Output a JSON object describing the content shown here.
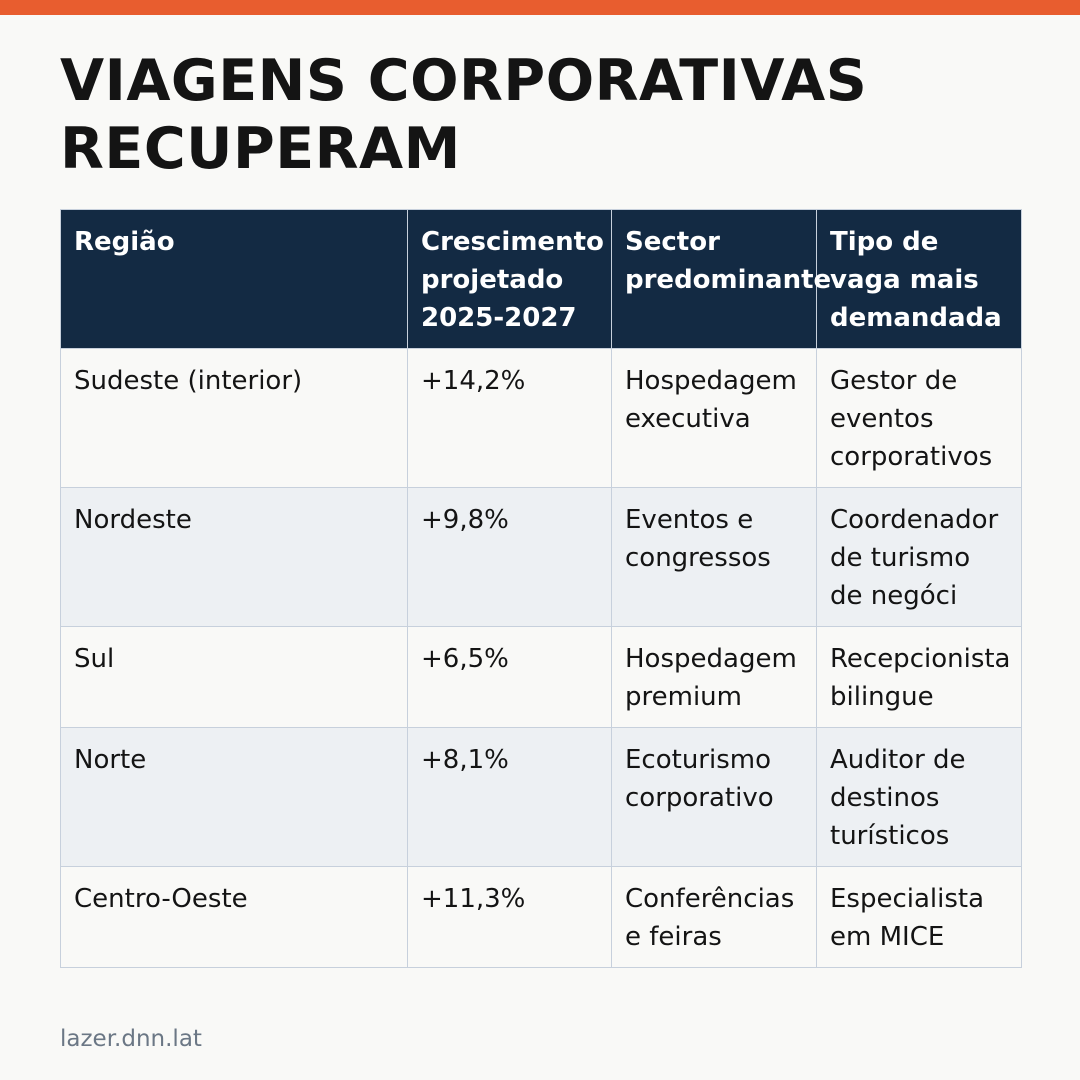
{
  "accent_color": "#e85d2f",
  "header_color": "#132a43",
  "title": "VIAGENS CORPORATIVAS RECUPERAM",
  "table": {
    "columns": [
      "Região",
      "Crescimento projetado 2025-2027",
      "Sector predominante",
      "Tipo de vaga mais demandada"
    ],
    "rows": [
      [
        "Sudeste (interior)",
        "+14,2%",
        "Hospedagem executiva",
        "Gestor de eventos corporativos"
      ],
      [
        "Nordeste",
        "+9,8%",
        "Eventos e congressos",
        "Coordenador de turismo de negóci"
      ],
      [
        "Sul",
        "+6,5%",
        "Hospedagem premium",
        "Recepcionista bilingue"
      ],
      [
        "Norte",
        "+8,1%",
        "Ecoturismo corporativo",
        "Auditor de destinos turísticos"
      ],
      [
        "Centro-Oeste",
        "+11,3%",
        "Conferências e feiras",
        "Especialista em MICE"
      ]
    ]
  },
  "footer": "lazer.dnn.lat"
}
